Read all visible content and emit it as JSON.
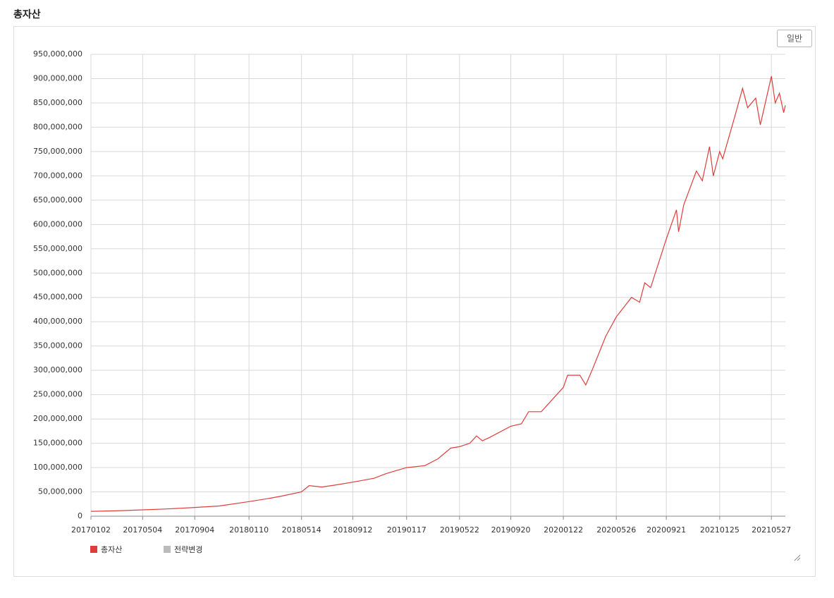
{
  "chart_data": {
    "type": "line",
    "title": "총자산",
    "button": "일반",
    "x": [
      "20170102",
      "20170301",
      "20170504",
      "20170701",
      "20170904",
      "20171101",
      "20180110",
      "20180301",
      "20180401",
      "20180514",
      "20180601",
      "20180701",
      "20180801",
      "20180912",
      "20181101",
      "20181201",
      "20190117",
      "20190301",
      "20190401",
      "20190501",
      "20190522",
      "20190615",
      "20190701",
      "20190715",
      "20190801",
      "20190920",
      "20191015",
      "20191101",
      "20191201",
      "20200122",
      "20200201",
      "20200301",
      "20200315",
      "20200401",
      "20200501",
      "20200526",
      "20200701",
      "20200720",
      "20200801",
      "20200815",
      "20200921",
      "20201015",
      "20201020",
      "20201101",
      "20201201",
      "20201215",
      "20210101",
      "20210110",
      "20210125",
      "20210201",
      "20210301",
      "20210320",
      "20210401",
      "20210420",
      "20210501",
      "20210527",
      "20210605",
      "20210615",
      "20210625",
      "20210629"
    ],
    "series": [
      {
        "name": "총자산",
        "color": "#e03c3c",
        "values": [
          10000000,
          11000000,
          13000000,
          15000000,
          18000000,
          21000000,
          30000000,
          37000000,
          42000000,
          50000000,
          63000000,
          60000000,
          64000000,
          70000000,
          78000000,
          88000000,
          100000000,
          104000000,
          118000000,
          140000000,
          143000000,
          150000000,
          165000000,
          155000000,
          162000000,
          185000000,
          190000000,
          215000000,
          215000000,
          265000000,
          290000000,
          290000000,
          270000000,
          305000000,
          370000000,
          410000000,
          450000000,
          440000000,
          480000000,
          470000000,
          570000000,
          630000000,
          585000000,
          640000000,
          710000000,
          690000000,
          760000000,
          700000000,
          750000000,
          735000000,
          820000000,
          880000000,
          840000000,
          860000000,
          805000000,
          905000000,
          850000000,
          870000000,
          830000000,
          845000000
        ]
      }
    ],
    "marker_legend": {
      "name": "전략변경",
      "color": "#bbbbbb"
    },
    "xlim": [
      "20170102",
      "20210629"
    ],
    "xticks": [
      "20170102",
      "20170504",
      "20170904",
      "20180110",
      "20180514",
      "20180912",
      "20190117",
      "20190522",
      "20190920",
      "20200122",
      "20200526",
      "20200921",
      "20210125",
      "20210527"
    ],
    "ylim": [
      0,
      950000000
    ],
    "yticks": [
      0,
      {
        "value": 50000000,
        "label": "50,000,000"
      },
      {
        "value": 100000000,
        "label": "100,000,000"
      },
      {
        "value": 150000000,
        "label": "150,000,000"
      },
      {
        "value": 200000000,
        "label": "200,000,000"
      },
      {
        "value": 250000000,
        "label": "250,000,000"
      },
      {
        "value": 300000000,
        "label": "300,000,000"
      },
      {
        "value": 350000000,
        "label": "350,000,000"
      },
      {
        "value": 400000000,
        "label": "400,000,000"
      },
      {
        "value": 450000000,
        "label": "450,000,000"
      },
      {
        "value": 500000000,
        "label": "500,000,000"
      },
      {
        "value": 550000000,
        "label": "550,000,000"
      },
      {
        "value": 600000000,
        "label": "600,000,000"
      },
      {
        "value": 650000000,
        "label": "650,000,000"
      },
      {
        "value": 700000000,
        "label": "700,000,000"
      },
      {
        "value": 750000000,
        "label": "750,000,000"
      },
      {
        "value": 800000000,
        "label": "800,000,000"
      },
      {
        "value": 850000000,
        "label": "850,000,000"
      },
      {
        "value": 900000000,
        "label": "900,000,000"
      },
      {
        "value": 950000000,
        "label": "950,000,000"
      }
    ],
    "grid": true
  }
}
